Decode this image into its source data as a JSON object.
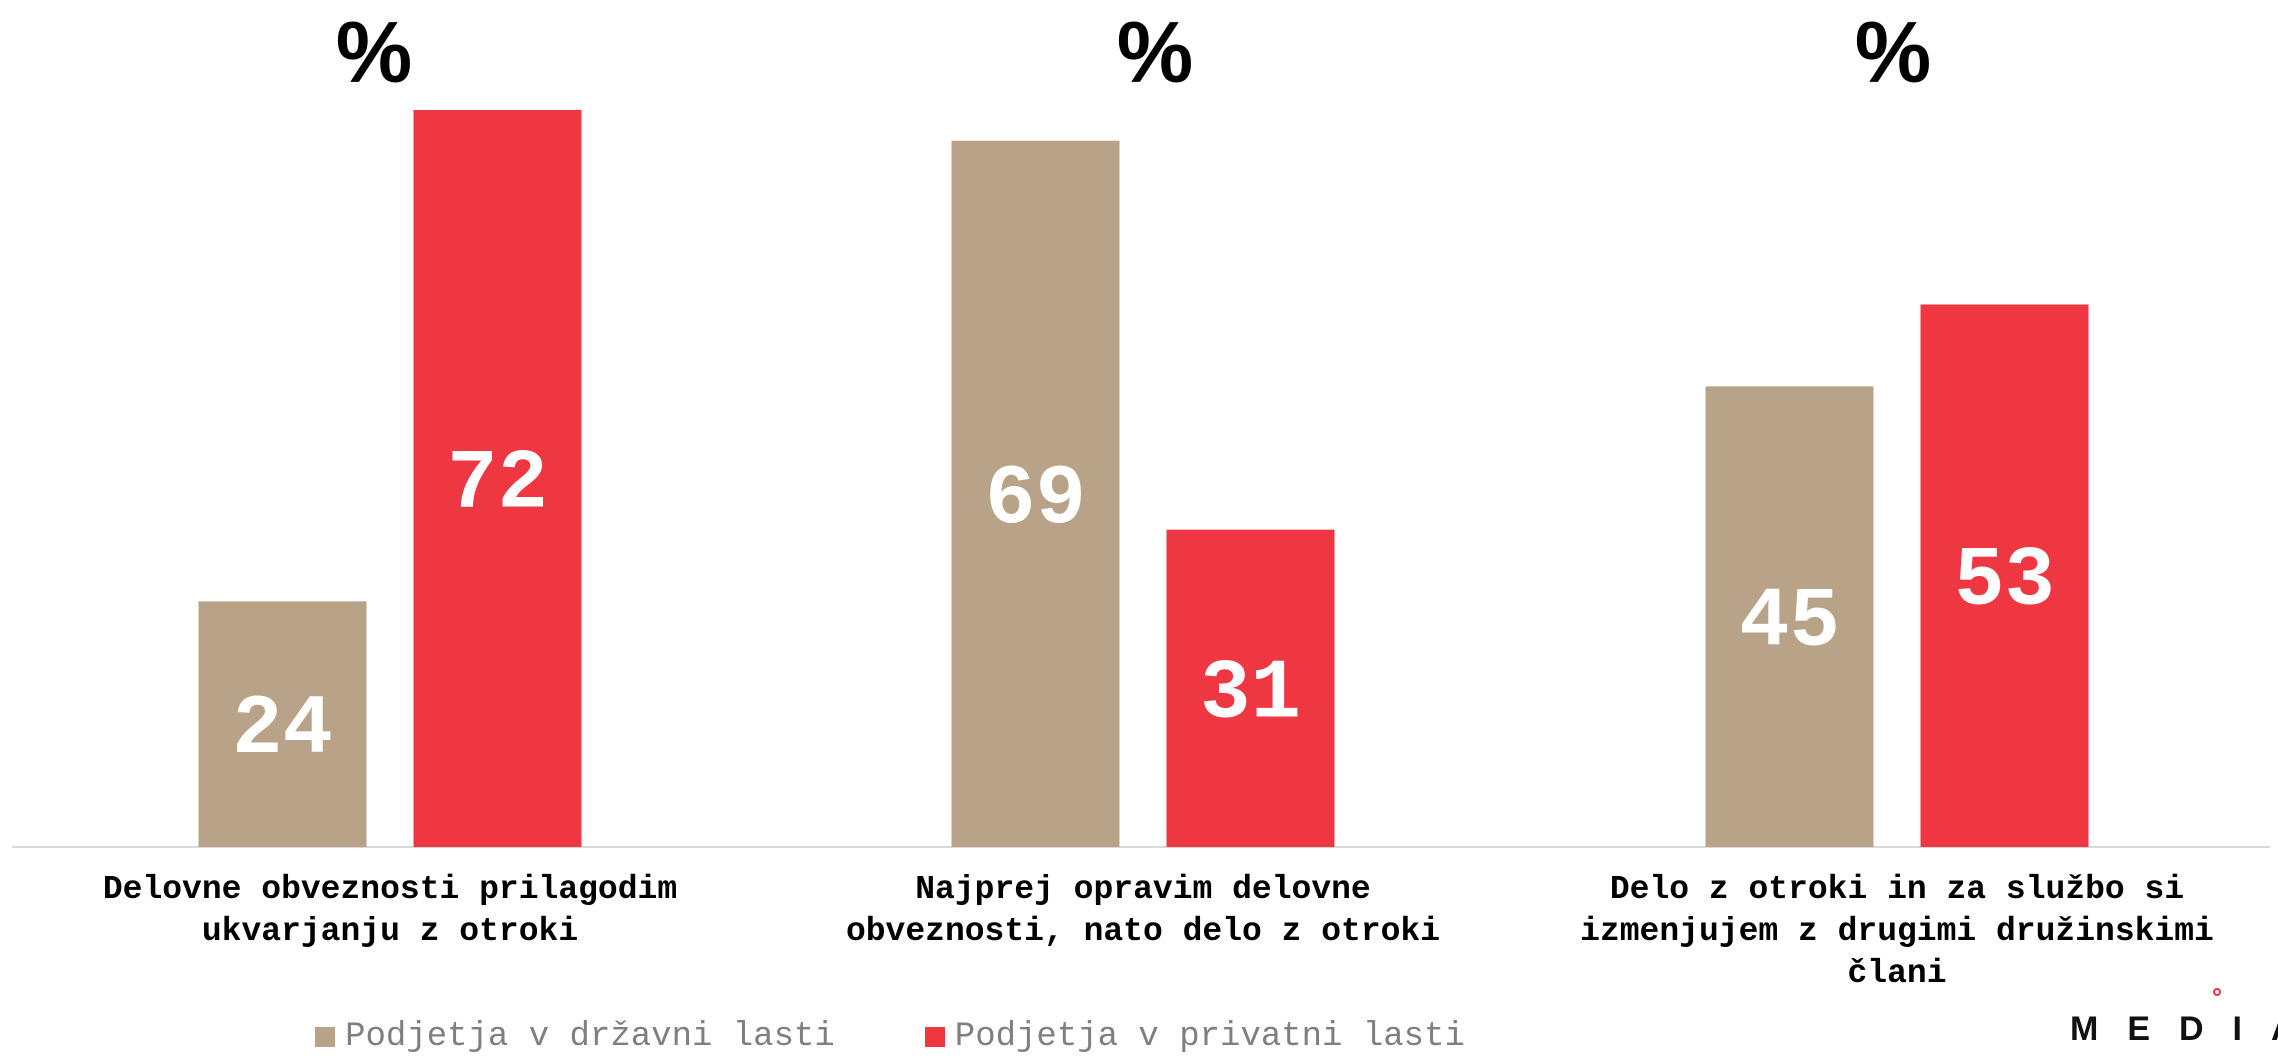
{
  "chart_data": {
    "type": "bar",
    "categories": [
      [
        "Delovne obveznosti prilagodim",
        "ukvarjanju z otroki"
      ],
      [
        "Najprej opravim delovne",
        "obveznosti, nato delo z otroki"
      ],
      [
        "Delo z otroki in za službo si",
        "izmenjujem z drugimi družinskimi",
        "člani"
      ]
    ],
    "unit_label": "%",
    "series": [
      {
        "name": "Podjetja v državni lasti",
        "color": "#b8a388",
        "values": [
          24,
          69,
          45
        ]
      },
      {
        "name": "Podjetja v privatni lasti",
        "color": "#ef3741",
        "values": [
          72,
          31,
          53
        ]
      }
    ],
    "ylim": [
      0,
      72
    ],
    "grid": false,
    "legend_position": "bottom"
  },
  "legend": {
    "items": [
      {
        "label": "Podjetja v državni lasti",
        "color": "#b8a388"
      },
      {
        "label": "Podjetja v privatni lasti",
        "color": "#ef3741"
      }
    ]
  },
  "logo": {
    "text": "MEDIA",
    "accent": "#e8343f"
  }
}
